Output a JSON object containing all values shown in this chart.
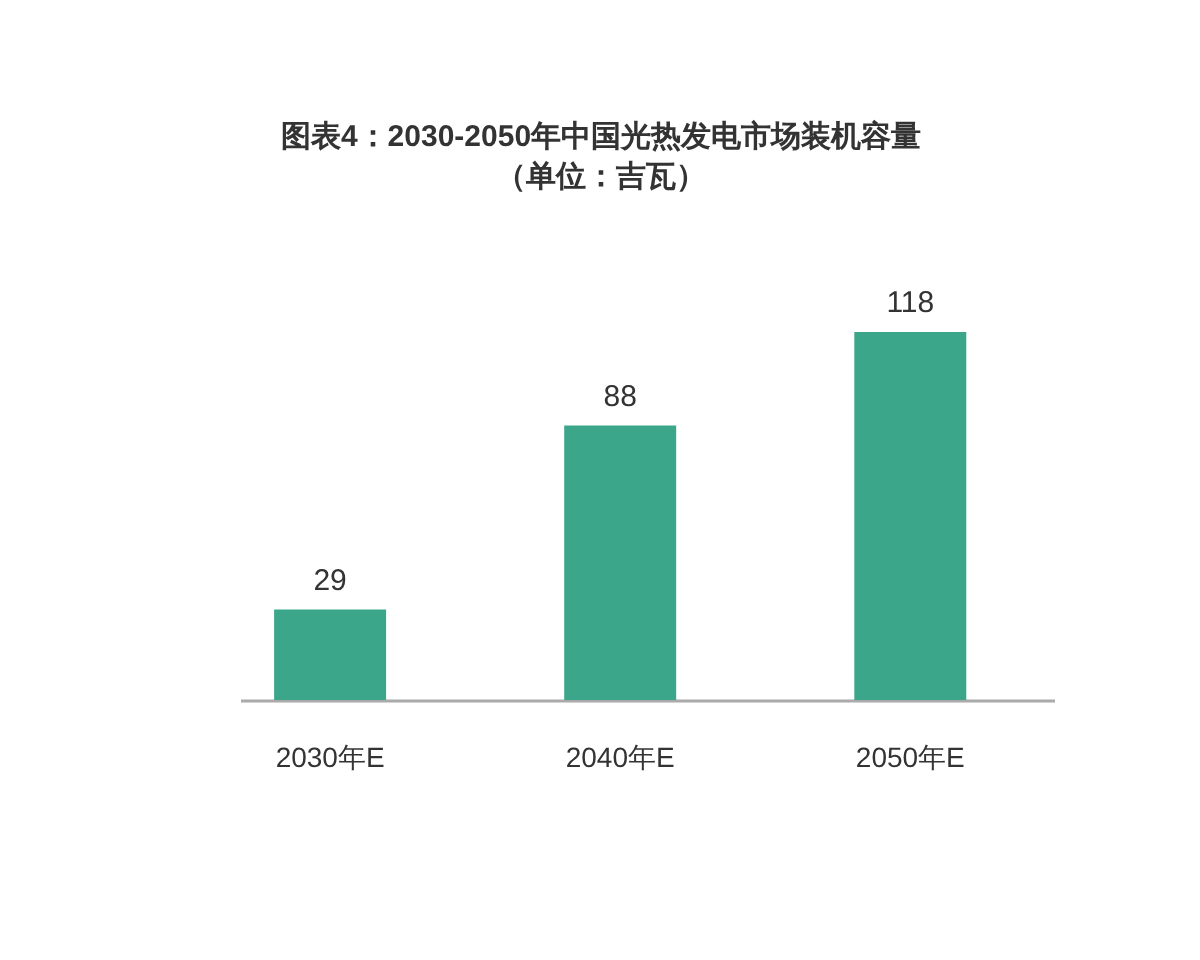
{
  "chart_data": {
    "type": "bar",
    "title": "图表4：2030-2050年中国光热发电市场装机容量",
    "subtitle": "（单位：吉瓦）",
    "categories": [
      "2030年E",
      "2040年E",
      "2050年E"
    ],
    "values": [
      29,
      88,
      118
    ],
    "color": "#3ca68b",
    "data_labels": true,
    "tick_labels": "x"
  }
}
